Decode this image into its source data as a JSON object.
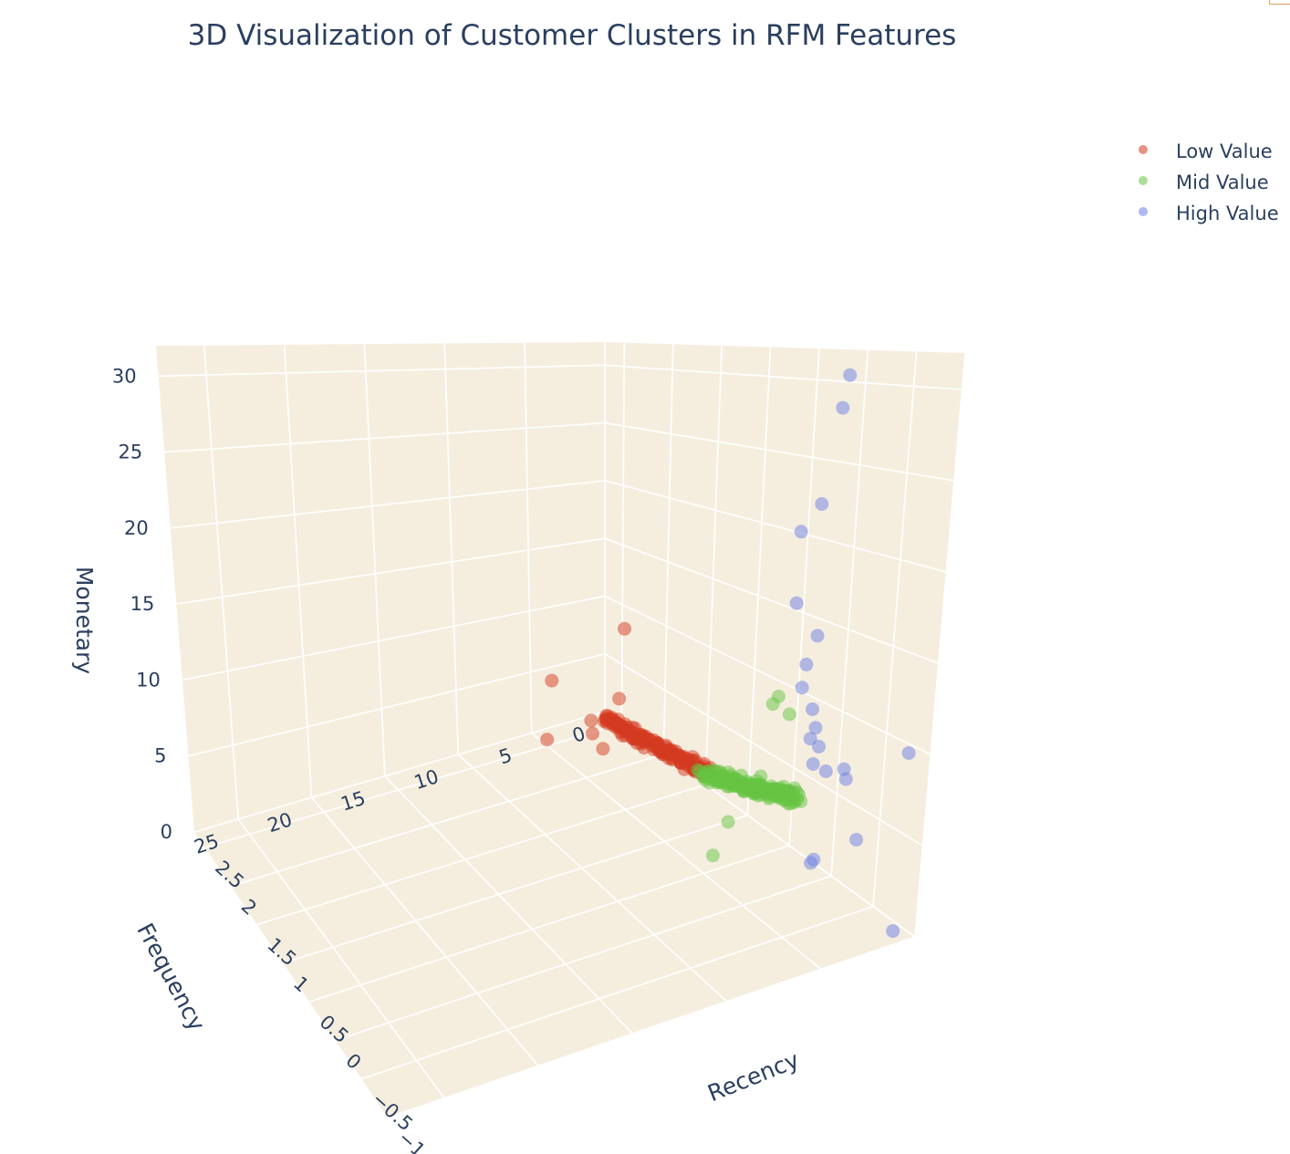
{
  "title": "3D Visualization of Customer Clusters in RFM Features",
  "colors": {
    "pane": "#f5eedf",
    "grid": "#ffffff",
    "text": "#2a3f5f"
  },
  "chart_data": {
    "type": "scatter",
    "dimensions": "3d",
    "title": "3D Visualization of Customer Clusters in RFM Features",
    "xlabel": "Recency",
    "ylabel": "Frequency",
    "zlabel": "Monetary",
    "x_ticks": [
      "−1",
      "−0.5",
      "0",
      "0.5",
      "1",
      "1.5",
      "2",
      "2.5"
    ],
    "y_ticks": [
      "0",
      "5",
      "10",
      "15",
      "20",
      "25"
    ],
    "z_ticks": [
      "0",
      "5",
      "10",
      "15",
      "20",
      "25",
      "30"
    ],
    "xlim": [
      -1,
      2.7
    ],
    "ylim": [
      0,
      28
    ],
    "zlim": [
      0,
      32
    ],
    "legend_position": "top-right",
    "grid": true,
    "series": [
      {
        "name": "Low Value",
        "color": "#d4391f",
        "points": [
          [
            2.25,
            6.0,
            6.5
          ],
          [
            2.3,
            1.0,
            9.0
          ],
          [
            1.9,
            3.5,
            5.8
          ],
          [
            1.8,
            5.0,
            3.0
          ],
          [
            2.6,
            1.5,
            0.3
          ],
          [
            2.5,
            5.0,
            0.5
          ],
          [
            2.4,
            2.5,
            0.6
          ]
        ],
        "band": {
          "x_from": 2.62,
          "x_to": 1.4,
          "y": 0.2,
          "z_from": 0.1,
          "z_to": 1.5,
          "count": 140
        }
      },
      {
        "name": "Mid Value",
        "color": "#66c442",
        "points": [
          [
            0.35,
            2.0,
            10.5
          ],
          [
            0.4,
            1.0,
            9.0
          ],
          [
            0.5,
            1.5,
            9.5
          ],
          [
            0.3,
            3.0,
            6.0
          ],
          [
            0.25,
            5.0,
            4.0
          ],
          [
            0.2,
            6.0,
            2.5
          ]
        ],
        "band": {
          "x_from": 1.4,
          "x_to": 0.3,
          "y": 0.4,
          "z_from": 1.5,
          "z_to": 4.0,
          "count": 150
        }
      },
      {
        "name": "High Value",
        "color": "#6b7ee3",
        "points": [
          [
            0.0,
            1.0,
            30.5
          ],
          [
            0.05,
            1.0,
            28.5
          ],
          [
            0.2,
            1.0,
            22.5
          ],
          [
            0.4,
            1.0,
            20.5
          ],
          [
            0.4,
            1.0,
            16.0
          ],
          [
            0.15,
            1.0,
            14.5
          ],
          [
            0.25,
            1.0,
            12.5
          ],
          [
            0.28,
            1.0,
            11.0
          ],
          [
            0.15,
            1.0,
            10.0
          ],
          [
            0.1,
            1.0,
            9.0
          ],
          [
            0.15,
            1.0,
            8.2
          ],
          [
            0.05,
            1.0,
            8.0
          ],
          [
            -0.05,
            1.0,
            6.8
          ],
          [
            0.1,
            1.0,
            6.8
          ],
          [
            -0.25,
            1.0,
            7.5
          ],
          [
            -0.28,
            1.0,
            7.0
          ],
          [
            -0.45,
            1.0,
            4.0
          ],
          [
            -0.15,
            2.0,
            2.0
          ],
          [
            -0.18,
            2.0,
            2.3
          ],
          [
            -0.95,
            1.0,
            10.2
          ],
          [
            -0.95,
            1.0,
            0.5
          ]
        ]
      }
    ]
  }
}
